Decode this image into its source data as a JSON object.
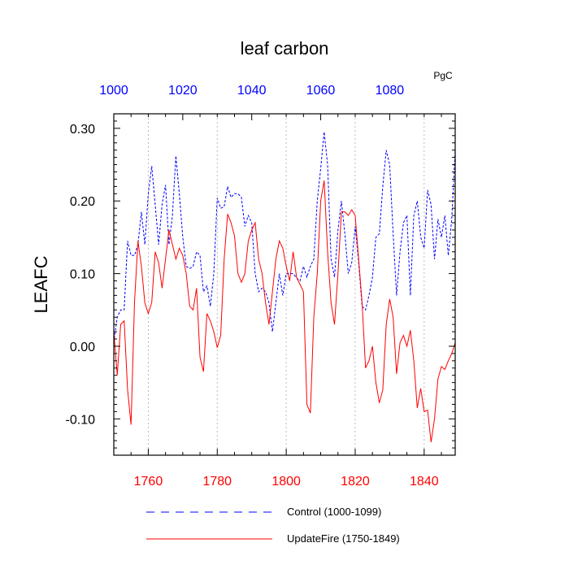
{
  "chart_data": {
    "type": "line",
    "title": "leaf carbon",
    "units": "PgC",
    "ylabel": "LEAFC",
    "ylim": [
      -0.15,
      0.32
    ],
    "yticks": [
      -0.1,
      0.0,
      0.1,
      0.2,
      0.3
    ],
    "ytick_labels": [
      "-0.10",
      "0.00",
      "0.10",
      "0.20",
      "0.30"
    ],
    "xlim_bottom": [
      1750,
      1849
    ],
    "xticks_bottom": [
      1760,
      1780,
      1800,
      1820,
      1840
    ],
    "xtick_labels_bottom": [
      "1760",
      "1780",
      "1800",
      "1820",
      "1840"
    ],
    "xtick_color_bottom": "#ff0000",
    "xlim_top": [
      1000,
      1099
    ],
    "xticks_top": [
      1000,
      1020,
      1040,
      1060,
      1080
    ],
    "xtick_labels_top": [
      "1000",
      "1020",
      "1040",
      "1060",
      "1080"
    ],
    "xtick_color_top": "#0000ff",
    "grid": "vertical dotted at major bottom ticks",
    "legend_position": "bottom",
    "series": [
      {
        "name": "Control (1000-1099)",
        "color": "#0000ff",
        "dash": "dashed",
        "x": [
          1000,
          1001,
          1002,
          1003,
          1004,
          1005,
          1006,
          1007,
          1008,
          1009,
          1010,
          1011,
          1012,
          1013,
          1014,
          1015,
          1016,
          1017,
          1018,
          1019,
          1020,
          1021,
          1022,
          1023,
          1024,
          1025,
          1026,
          1027,
          1028,
          1029,
          1030,
          1031,
          1032,
          1033,
          1034,
          1035,
          1036,
          1037,
          1038,
          1039,
          1040,
          1041,
          1042,
          1043,
          1044,
          1045,
          1046,
          1047,
          1048,
          1049,
          1050,
          1051,
          1052,
          1053,
          1054,
          1055,
          1056,
          1057,
          1058,
          1059,
          1060,
          1061,
          1062,
          1063,
          1064,
          1065,
          1066,
          1067,
          1068,
          1069,
          1070,
          1071,
          1072,
          1073,
          1074,
          1075,
          1076,
          1077,
          1078,
          1079,
          1080,
          1081,
          1082,
          1083,
          1084,
          1085,
          1086,
          1087,
          1088,
          1089,
          1090,
          1091,
          1092,
          1093,
          1094,
          1095,
          1096,
          1097,
          1098,
          1099
        ],
        "values": [
          0.005,
          0.04,
          0.05,
          0.05,
          0.145,
          0.125,
          0.125,
          0.14,
          0.185,
          0.14,
          0.21,
          0.248,
          0.195,
          0.14,
          0.195,
          0.222,
          0.14,
          0.18,
          0.262,
          0.21,
          0.15,
          0.11,
          0.107,
          0.11,
          0.13,
          0.125,
          0.075,
          0.083,
          0.055,
          0.1,
          0.204,
          0.19,
          0.192,
          0.22,
          0.205,
          0.21,
          0.21,
          0.205,
          0.165,
          0.18,
          0.17,
          0.1,
          0.075,
          0.08,
          0.075,
          0.06,
          0.02,
          0.06,
          0.1,
          0.07,
          0.1,
          0.1,
          0.1,
          0.094,
          0.09,
          0.11,
          0.095,
          0.11,
          0.12,
          0.2,
          0.245,
          0.295,
          0.25,
          0.12,
          0.095,
          0.16,
          0.2,
          0.155,
          0.1,
          0.115,
          0.165,
          0.115,
          0.055,
          0.05,
          0.07,
          0.095,
          0.15,
          0.155,
          0.22,
          0.27,
          0.25,
          0.155,
          0.07,
          0.13,
          0.17,
          0.18,
          0.07,
          0.18,
          0.2,
          0.15,
          0.135,
          0.215,
          0.195,
          0.12,
          0.175,
          0.15,
          0.18,
          0.125,
          0.175,
          0.27
        ]
      },
      {
        "name": "UpdateFire (1750-1849)",
        "color": "#ff0000",
        "dash": "solid",
        "x": [
          1750,
          1751,
          1752,
          1753,
          1754,
          1755,
          1756,
          1757,
          1758,
          1759,
          1760,
          1761,
          1762,
          1763,
          1764,
          1765,
          1766,
          1767,
          1768,
          1769,
          1770,
          1771,
          1772,
          1773,
          1774,
          1775,
          1776,
          1777,
          1778,
          1779,
          1780,
          1781,
          1782,
          1783,
          1784,
          1785,
          1786,
          1787,
          1788,
          1789,
          1790,
          1791,
          1792,
          1793,
          1794,
          1795,
          1796,
          1797,
          1798,
          1799,
          1800,
          1801,
          1802,
          1803,
          1804,
          1805,
          1806,
          1807,
          1808,
          1809,
          1810,
          1811,
          1812,
          1813,
          1814,
          1815,
          1816,
          1817,
          1818,
          1819,
          1820,
          1821,
          1822,
          1823,
          1824,
          1825,
          1826,
          1827,
          1828,
          1829,
          1830,
          1831,
          1832,
          1833,
          1834,
          1835,
          1836,
          1837,
          1838,
          1839,
          1840,
          1841,
          1842,
          1843,
          1844,
          1845,
          1846,
          1847,
          1848,
          1849
        ],
        "values": [
          0.02,
          -0.04,
          0.03,
          0.035,
          -0.06,
          -0.108,
          0.06,
          0.145,
          0.11,
          0.06,
          0.045,
          0.06,
          0.13,
          0.115,
          0.08,
          0.12,
          0.16,
          0.14,
          0.12,
          0.135,
          0.125,
          0.1,
          0.055,
          0.05,
          0.08,
          -0.015,
          -0.035,
          0.045,
          0.035,
          0.02,
          -0.002,
          0.015,
          0.12,
          0.182,
          0.17,
          0.152,
          0.1,
          0.088,
          0.1,
          0.145,
          0.16,
          0.17,
          0.12,
          0.1,
          0.06,
          0.03,
          0.075,
          0.12,
          0.145,
          0.135,
          0.11,
          0.09,
          0.13,
          0.095,
          0.085,
          0.075,
          -0.08,
          -0.092,
          0.04,
          0.1,
          0.2,
          0.228,
          0.13,
          0.06,
          0.03,
          0.1,
          0.185,
          0.185,
          0.18,
          0.188,
          0.18,
          0.12,
          0.06,
          -0.03,
          -0.02,
          0.0,
          -0.05,
          -0.078,
          -0.06,
          0.03,
          0.065,
          0.04,
          -0.038,
          0.005,
          0.015,
          0.0,
          0.022,
          -0.02,
          -0.085,
          -0.058,
          -0.09,
          -0.088,
          -0.132,
          -0.1,
          -0.045,
          -0.028,
          -0.032,
          -0.02,
          -0.01,
          0.005
        ]
      }
    ]
  }
}
